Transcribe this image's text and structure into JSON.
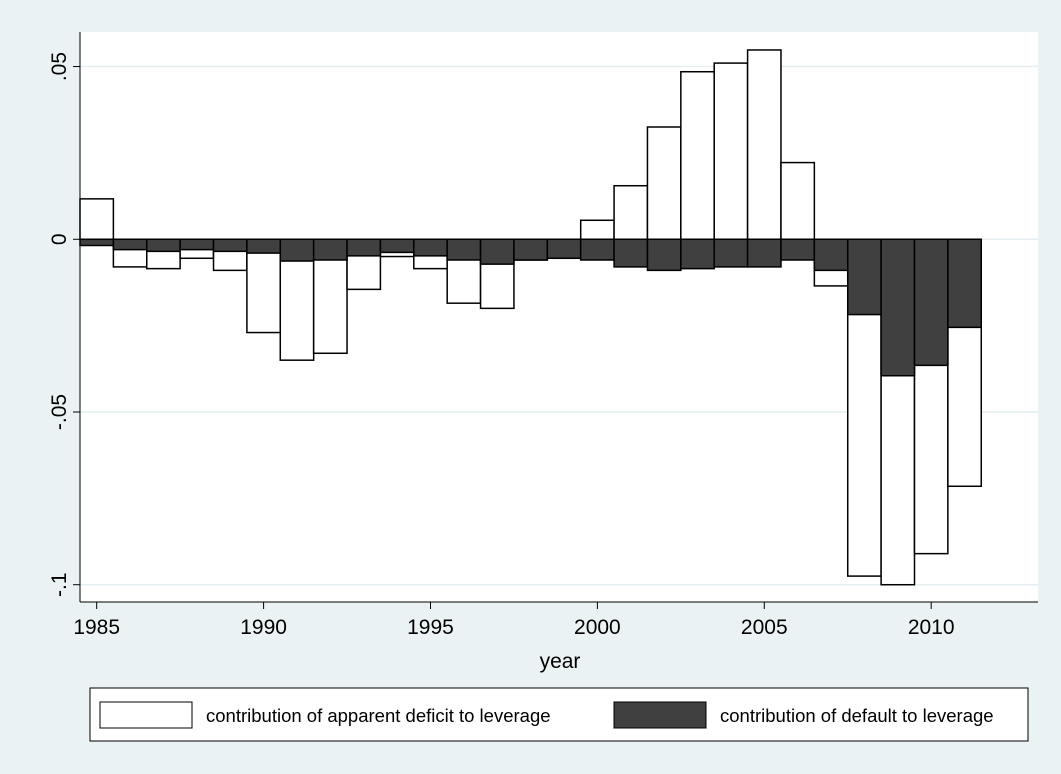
{
  "chart_data": {
    "type": "bar",
    "xlabel": "year",
    "ylabel": "",
    "xlim": [
      1984.5,
      2013.2
    ],
    "ylim": [
      -0.105,
      0.06
    ],
    "x_ticks": [
      {
        "value": 1985,
        "label": "1985"
      },
      {
        "value": 1990,
        "label": "1990"
      },
      {
        "value": 1995,
        "label": "1995"
      },
      {
        "value": 2000,
        "label": "2000"
      },
      {
        "value": 2005,
        "label": "2005"
      },
      {
        "value": 2010,
        "label": "2010"
      }
    ],
    "y_ticks": [
      {
        "value": 0.05,
        "label": ".05"
      },
      {
        "value": 0,
        "label": "0"
      },
      {
        "value": -0.05,
        "label": "-.05"
      },
      {
        "value": -0.1,
        "label": "-.1"
      }
    ],
    "grid": true,
    "legend_position": "bottom",
    "x": [
      1985,
      1986,
      1987,
      1988,
      1989,
      1990,
      1991,
      1992,
      1993,
      1994,
      1995,
      1996,
      1997,
      1998,
      1999,
      2000,
      2001,
      2002,
      2003,
      2004,
      2005,
      2006,
      2007,
      2008,
      2009,
      2010,
      2011
    ],
    "series": [
      {
        "name": "contribution of apparent deficit to leverage",
        "color": "#ffffff",
        "stroke": "#000000",
        "values": [
          0.0117,
          -0.008,
          -0.0085,
          -0.0055,
          -0.009,
          -0.027,
          -0.035,
          -0.033,
          -0.0145,
          -0.005,
          -0.0085,
          -0.0185,
          -0.02,
          -0.006,
          -0.0055,
          0.0055,
          0.0155,
          0.0325,
          0.0485,
          0.051,
          0.0548,
          0.0222,
          -0.0135,
          -0.0975,
          -0.1,
          -0.091,
          -0.0715
        ]
      },
      {
        "name": "contribution of default to leverage",
        "color": "#404040",
        "stroke": "#000000",
        "values": [
          -0.0018,
          -0.003,
          -0.0035,
          -0.003,
          -0.0035,
          -0.004,
          -0.0063,
          -0.006,
          -0.0048,
          -0.0038,
          -0.0048,
          -0.006,
          -0.0072,
          -0.006,
          -0.0055,
          -0.006,
          -0.008,
          -0.009,
          -0.0085,
          -0.008,
          -0.008,
          -0.006,
          -0.009,
          -0.0218,
          -0.0395,
          -0.0365,
          -0.0255
        ]
      }
    ]
  }
}
